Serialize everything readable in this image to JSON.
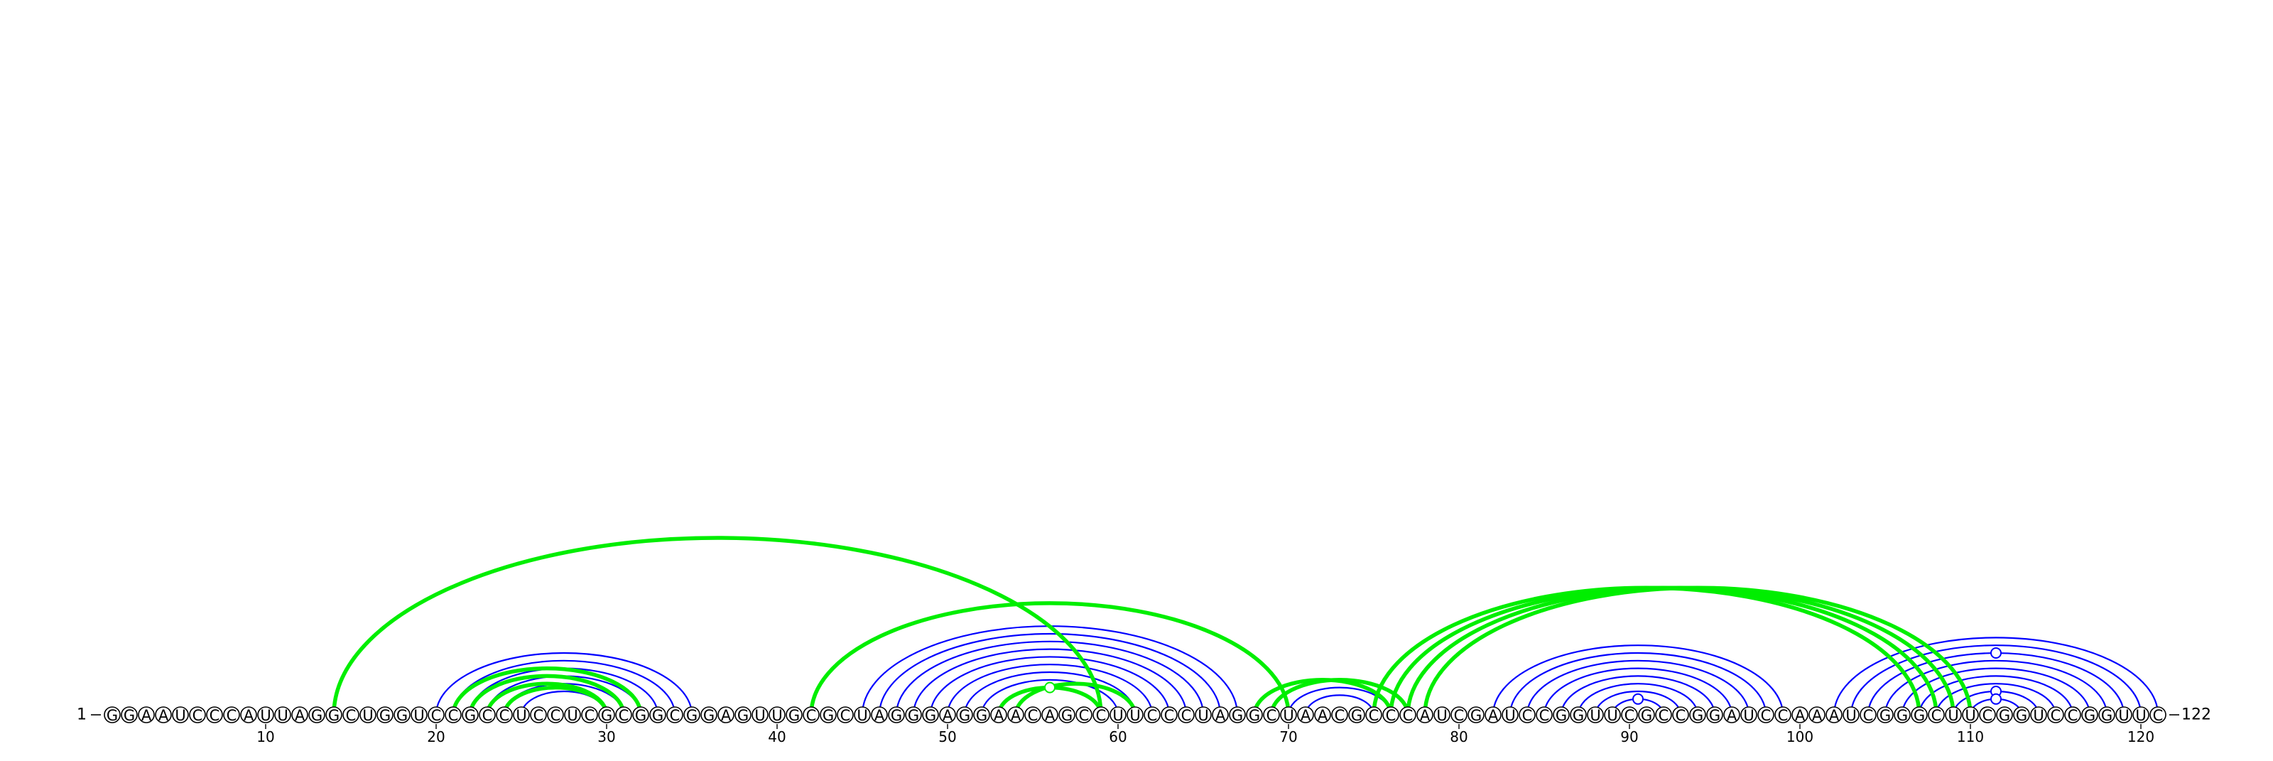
{
  "sequence": "GGAAUCCCAUUAGGCUGGUCCGCCUCCUCGCGGCGGAGUUGCGCUAGGGAGGAACAGCCUUCCCUAGGCUAACGCCCAUCGAUCCGGUUCGCCGGAUCCAAAUCGGGCUUCGGUCCGGUUC",
  "start_label": "1",
  "end_label": "122",
  "axis_ticks": [
    10,
    20,
    30,
    40,
    50,
    60,
    70,
    80,
    90,
    100,
    110,
    120
  ],
  "colors": {
    "blue_pairs": "#0000ff",
    "green_pairs": "#00ee00"
  },
  "blue_pairs": [
    [
      20,
      35
    ],
    [
      21,
      34
    ],
    [
      22,
      33
    ],
    [
      23,
      32
    ],
    [
      24,
      31
    ],
    [
      25,
      30
    ],
    [
      45,
      67
    ],
    [
      46,
      66
    ],
    [
      47,
      65
    ],
    [
      48,
      64
    ],
    [
      49,
      63
    ],
    [
      50,
      62
    ],
    [
      51,
      61
    ],
    [
      52,
      60
    ],
    [
      53,
      59
    ],
    [
      70,
      76
    ],
    [
      71,
      75
    ],
    [
      82,
      99
    ],
    [
      83,
      98
    ],
    [
      84,
      97
    ],
    [
      85,
      96
    ],
    [
      86,
      95
    ],
    [
      87,
      94
    ],
    [
      88,
      93
    ],
    [
      89,
      92
    ],
    [
      102,
      121
    ],
    [
      103,
      120
    ],
    [
      104,
      119
    ],
    [
      105,
      118
    ],
    [
      106,
      117
    ],
    [
      107,
      116
    ],
    [
      108,
      115
    ],
    [
      109,
      114
    ],
    [
      110,
      113
    ]
  ],
  "green_pairs": [
    [
      14,
      59
    ],
    [
      21,
      32
    ],
    [
      22,
      31
    ],
    [
      23,
      30
    ],
    [
      24,
      30
    ],
    [
      42,
      70
    ],
    [
      53,
      59
    ],
    [
      54,
      61
    ],
    [
      68,
      76
    ],
    [
      69,
      77
    ],
    [
      75,
      107
    ],
    [
      76,
      108
    ],
    [
      77,
      109
    ],
    [
      78,
      110
    ]
  ],
  "blue_noncanonical_markers": [
    {
      "i": 89,
      "j": 92
    },
    {
      "i": 109,
      "j": 114
    },
    {
      "i": 110,
      "j": 113
    },
    {
      "i": 104,
      "j": 119
    }
  ],
  "green_noncanonical_markers": [
    {
      "i": 53,
      "j": 59
    }
  ]
}
